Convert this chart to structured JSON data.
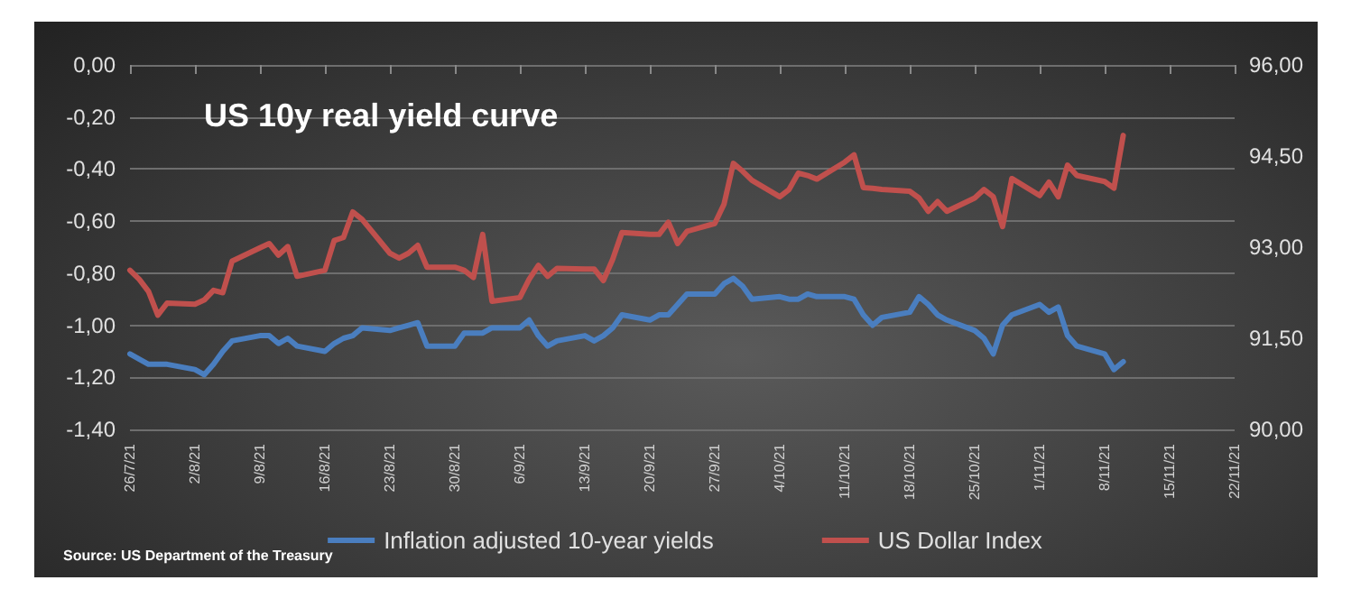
{
  "chart_data": {
    "type": "line",
    "title": "US 10y real yield curve",
    "annotations": [
      "Source: US Department of the Treasury"
    ],
    "x": [
      "--07-26",
      "--07-27",
      "--07-28",
      "--07-29",
      "--07-30",
      "--08-02",
      "--08-03",
      "--08-04",
      "--08-05",
      "--08-06",
      "--08-09",
      "--08-10",
      "--08-11",
      "--08-12",
      "--08-13",
      "--08-16",
      "--08-17",
      "--08-18",
      "--08-19",
      "--08-20",
      "--08-23",
      "--08-24",
      "--08-25",
      "--08-26",
      "--08-27",
      "--08-30",
      "--08-31",
      "--09-01",
      "--09-02",
      "--09-03",
      "--09-06",
      "--09-07",
      "--09-08",
      "--09-09",
      "--09-10",
      "--09-13",
      "--09-14",
      "--09-15",
      "--09-16",
      "--09-17",
      "--09-20",
      "--09-21",
      "--09-22",
      "--09-23",
      "--09-24",
      "--09-27",
      "--09-28",
      "--09-29",
      "--09-30",
      "--10-01",
      "--10-04",
      "--10-05",
      "--10-06",
      "--10-07",
      "--10-08",
      "--10-11",
      "--10-12",
      "--10-13",
      "--10-14",
      "--10-15",
      "--10-18",
      "--10-19",
      "--10-20",
      "--10-21",
      "--10-22",
      "--10-25",
      "--10-26",
      "--10-27",
      "--10-28",
      "--10-29",
      "--11-01",
      "--11-02",
      "--11-03",
      "--11-04",
      "--11-05",
      "--11-08",
      "--11-09",
      "--11-10"
    ],
    "series": [
      {
        "name": "Inflation adjusted 10-year yields",
        "color": "#4a7ebf",
        "values": [
          -1.11,
          -1.13,
          -1.15,
          -1.15,
          -1.15,
          -1.17,
          -1.19,
          -1.15,
          -1.1,
          -1.06,
          -1.04,
          -1.04,
          -1.07,
          -1.05,
          -1.08,
          -1.1,
          -1.07,
          -1.05,
          -1.04,
          -1.01,
          -1.02,
          -1.01,
          -1.0,
          -0.99,
          -1.08,
          -1.08,
          -1.03,
          -1.03,
          -1.03,
          -1.01,
          -1.01,
          -0.98,
          -1.04,
          -1.08,
          -1.06,
          -1.04,
          -1.06,
          -1.04,
          -1.01,
          -0.96,
          -0.98,
          -0.96,
          -0.96,
          -0.92,
          -0.88,
          -0.88,
          -0.84,
          -0.82,
          -0.85,
          -0.9,
          -0.89,
          -0.9,
          -0.9,
          -0.88,
          -0.89,
          -0.89,
          -0.9,
          -0.96,
          -1.0,
          -0.97,
          -0.95,
          -0.89,
          -0.92,
          -0.96,
          -0.98,
          -1.02,
          -1.05,
          -1.11,
          -1.0,
          -0.96,
          -0.92,
          -0.95,
          -0.93,
          -1.04,
          -1.08,
          -1.11,
          -1.17,
          -1.14
        ]
      },
      {
        "name": "US Dollar Index",
        "color": "#c0504d",
        "axis": "y2",
        "values": [
          92.62,
          92.47,
          92.27,
          91.88,
          92.08,
          92.06,
          92.13,
          92.29,
          92.25,
          92.77,
          92.99,
          93.06,
          92.87,
          93.01,
          92.52,
          92.62,
          93.11,
          93.16,
          93.58,
          93.46,
          92.9,
          92.82,
          92.9,
          93.03,
          92.67,
          92.67,
          92.62,
          92.5,
          93.21,
          92.11,
          92.17,
          92.47,
          92.7,
          92.52,
          92.65,
          92.64,
          92.64,
          92.45,
          92.8,
          93.24,
          93.21,
          93.21,
          93.41,
          93.06,
          93.26,
          93.39,
          93.71,
          94.38,
          94.25,
          94.1,
          93.83,
          93.95,
          94.22,
          94.18,
          94.12,
          94.4,
          94.52,
          93.98,
          93.97,
          93.95,
          93.92,
          93.81,
          93.59,
          93.75,
          93.59,
          93.81,
          93.95,
          93.83,
          93.34,
          94.13,
          93.85,
          94.07,
          93.83,
          94.35,
          94.18,
          94.08,
          93.97,
          94.84
        ]
      }
    ],
    "xlim": [
      "--07-26",
      "--11-22"
    ],
    "xticks": [
      {
        "value": "--07-26",
        "label": "26/7/21"
      },
      {
        "value": "--08-02",
        "label": "2/8/21"
      },
      {
        "value": "--08-09",
        "label": "9/8/21"
      },
      {
        "value": "--08-16",
        "label": "16/8/21"
      },
      {
        "value": "--08-23",
        "label": "23/8/21"
      },
      {
        "value": "--08-30",
        "label": "30/8/21"
      },
      {
        "value": "--09-06",
        "label": "6/9/21"
      },
      {
        "value": "--09-13",
        "label": "13/9/21"
      },
      {
        "value": "--09-20",
        "label": "20/9/21"
      },
      {
        "value": "--09-27",
        "label": "27/9/21"
      },
      {
        "value": "--10-04",
        "label": "4/10/21"
      },
      {
        "value": "--10-11",
        "label": "11/10/21"
      },
      {
        "value": "--10-18",
        "label": "18/10/21"
      },
      {
        "value": "--10-25",
        "label": "25/10/21"
      },
      {
        "value": "--11-01",
        "label": "1/11/21"
      },
      {
        "value": "--11-08",
        "label": "8/11/21"
      },
      {
        "value": "--11-15",
        "label": "15/11/21"
      },
      {
        "value": "--11-22",
        "label": "22/11/21"
      }
    ],
    "ylim": [
      -1.4,
      0
    ],
    "yticks": [
      {
        "value": -1.4,
        "label": "-1,40"
      },
      {
        "value": -1.2,
        "label": "-1,20"
      },
      {
        "value": -1,
        "label": "-1,00"
      },
      {
        "value": -0.8,
        "label": "-0,80"
      },
      {
        "value": -0.6,
        "label": "-0,60"
      },
      {
        "value": -0.4,
        "label": "-0,40"
      },
      {
        "value": -0.2,
        "label": "-0,20"
      },
      {
        "value": 0,
        "label": "0,00"
      }
    ],
    "y2lim": [
      90,
      96
    ],
    "y2ticks": [
      {
        "value": 90,
        "label": "90,00"
      },
      {
        "value": 91.5,
        "label": "91,50"
      },
      {
        "value": 93,
        "label": "93,00"
      },
      {
        "value": 94.5,
        "label": "94,50"
      },
      {
        "value": 96,
        "label": "96,00"
      }
    ],
    "grid": "y",
    "legend": "bottom",
    "marker": "none",
    "line_style": "solid"
  }
}
